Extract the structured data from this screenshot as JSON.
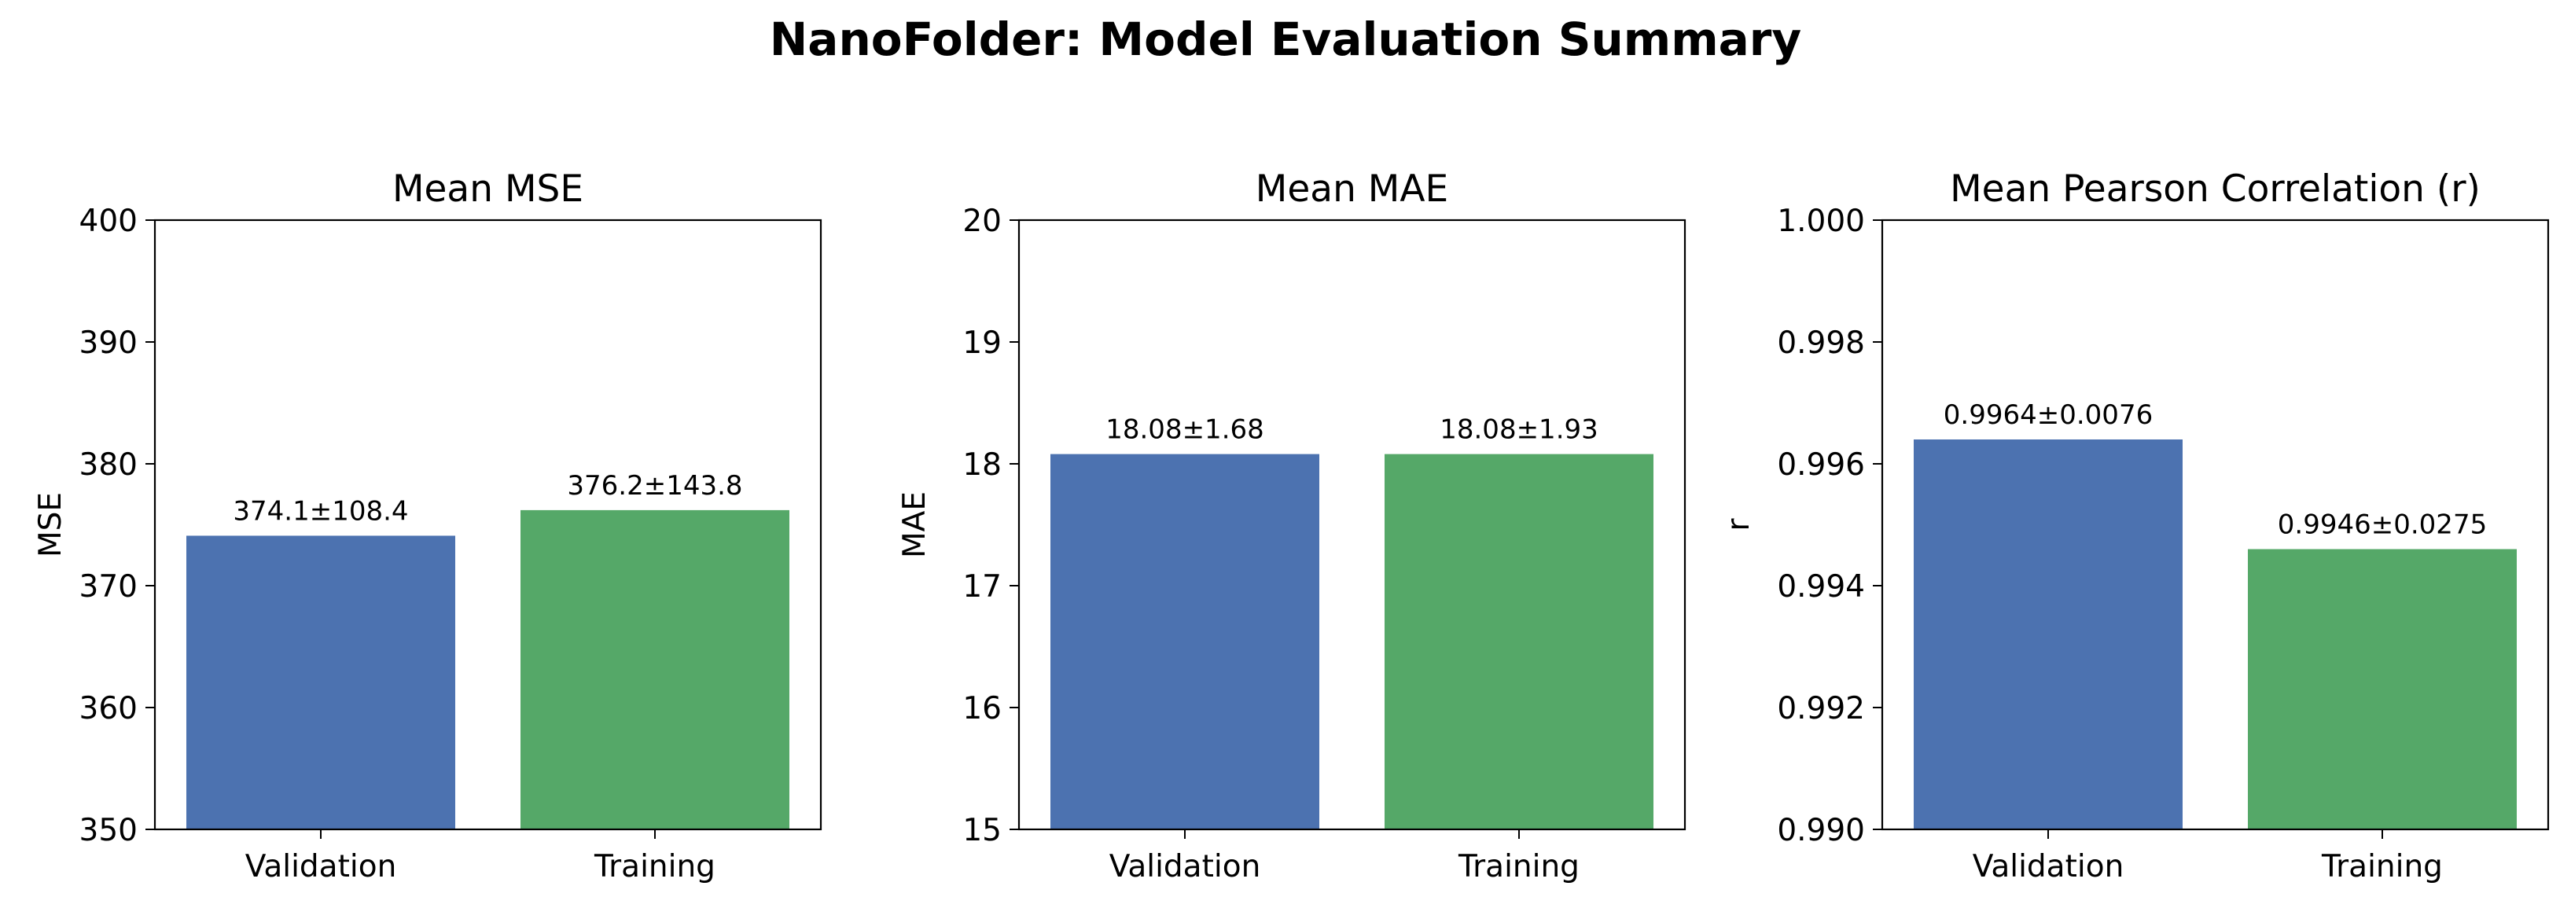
{
  "title": "NanoFolder: Model Evaluation Summary",
  "colors": {
    "validation": "#4c72b0",
    "training": "#55a868"
  },
  "chart_data": [
    {
      "type": "bar",
      "title": "Mean MSE",
      "xlabel": "",
      "ylabel": "MSE",
      "categories": [
        "Validation",
        "Training"
      ],
      "values": [
        374.1,
        376.2
      ],
      "labels": [
        "374.1±108.4",
        "376.2±143.8"
      ],
      "ylim": [
        350,
        400
      ],
      "yticks": [
        "350",
        "360",
        "370",
        "380",
        "390",
        "400"
      ],
      "grid": false
    },
    {
      "type": "bar",
      "title": "Mean MAE",
      "xlabel": "",
      "ylabel": "MAE",
      "categories": [
        "Validation",
        "Training"
      ],
      "values": [
        18.08,
        18.08
      ],
      "labels": [
        "18.08±1.68",
        "18.08±1.93"
      ],
      "ylim": [
        15,
        20
      ],
      "yticks": [
        "15",
        "16",
        "17",
        "18",
        "19",
        "20"
      ],
      "grid": false
    },
    {
      "type": "bar",
      "title": "Mean Pearson Correlation (r)",
      "xlabel": "",
      "ylabel": "r",
      "categories": [
        "Validation",
        "Training"
      ],
      "values": [
        0.9964,
        0.9946
      ],
      "labels": [
        "0.9964±0.0076",
        "0.9946±0.0275"
      ],
      "ylim": [
        0.99,
        1.0
      ],
      "yticks": [
        "0.990",
        "0.992",
        "0.994",
        "0.996",
        "0.998",
        "1.000"
      ],
      "grid": false
    }
  ]
}
